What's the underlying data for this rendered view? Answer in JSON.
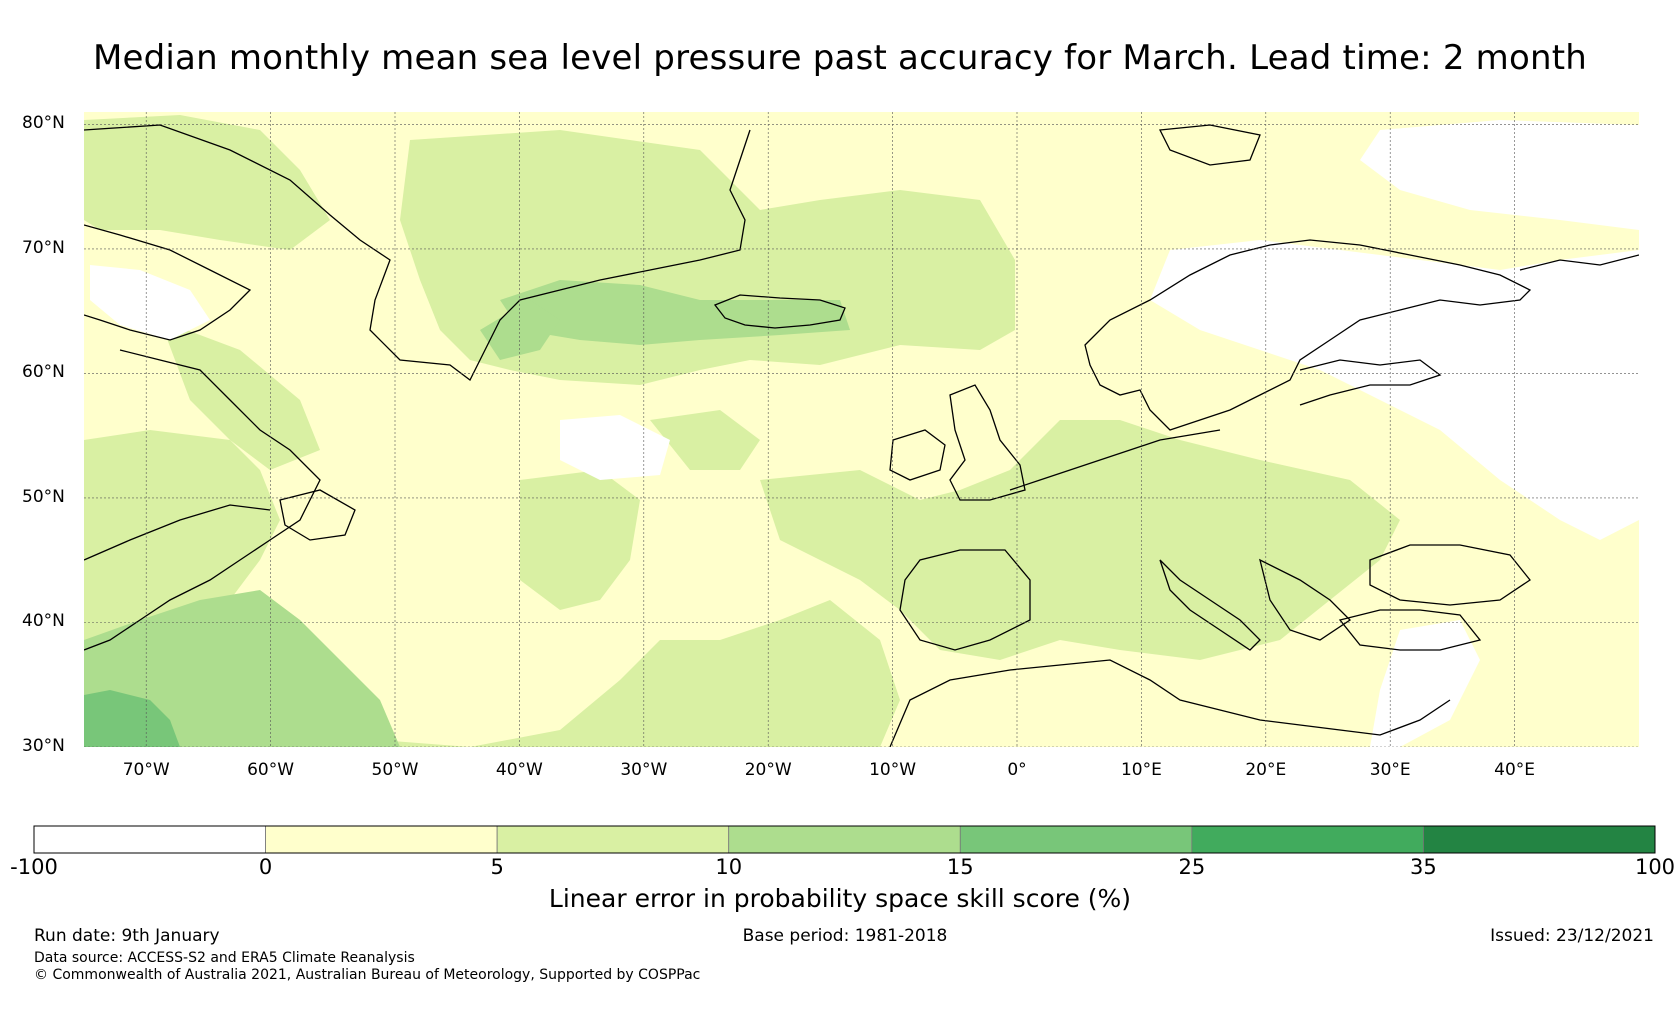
{
  "title": "Median monthly mean sea level pressure past accuracy for March. Lead time: 2 month",
  "lat_labels": [
    "80°N",
    "70°N",
    "60°N",
    "50°N",
    "40°N",
    "30°N"
  ],
  "lon_labels": [
    "70°W",
    "60°W",
    "50°W",
    "40°W",
    "30°W",
    "20°W",
    "10°W",
    "0°",
    "10°E",
    "20°E",
    "30°E",
    "40°E"
  ],
  "map": {
    "lat_range": [
      30,
      81
    ],
    "lon_range": [
      -75,
      50
    ],
    "grid_lats": [
      80,
      70,
      60,
      50,
      40,
      30
    ],
    "grid_lons": [
      -70,
      -60,
      -50,
      -40,
      -30,
      -20,
      -10,
      0,
      10,
      20,
      30,
      40
    ]
  },
  "colorbar": {
    "title": "Linear error in probability space skill score (%)",
    "boundaries": [
      "-100",
      "0",
      "5",
      "10",
      "15",
      "25",
      "35",
      "100"
    ],
    "colors": [
      "#ffffff",
      "#ffffcc",
      "#d9f0a3",
      "#addd8e",
      "#78c679",
      "#41ab5d",
      "#238443"
    ]
  },
  "footer": {
    "run_date": "Run date: 9th January",
    "base_period": "Base period: 1981-2018",
    "issued": "Issued: 23/12/2021",
    "data_source": "Data source: ACCESS-S2 and ERA5 Climate Reanalysis",
    "copyright": "© Commonwealth of Australia 2021, Australian Bureau of Meteorology, Supported by COSPPac"
  }
}
